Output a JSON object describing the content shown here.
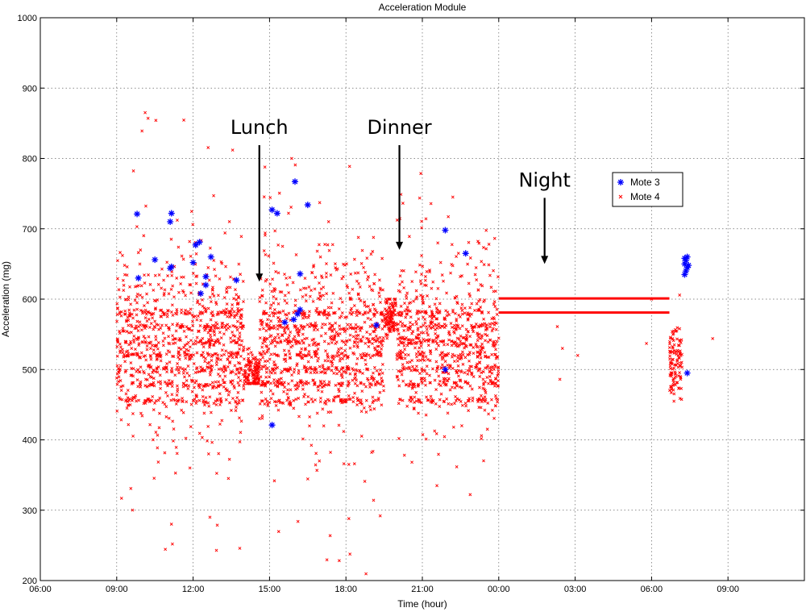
{
  "chart_data": {
    "type": "scatter",
    "title": "Acceleration Module",
    "xlabel": "Time (hour)",
    "ylabel": "Acceleration (mg)",
    "xlim": [
      6,
      36
    ],
    "ylim": [
      200,
      1000
    ],
    "x_ticks": [
      6,
      9,
      12,
      15,
      18,
      21,
      24,
      27,
      30,
      33
    ],
    "x_tick_labels": [
      "06:00",
      "09:00",
      "12:00",
      "15:00",
      "18:00",
      "21:00",
      "00:00",
      "03:00",
      "06:00",
      "09:00"
    ],
    "y_ticks": [
      200,
      300,
      400,
      500,
      600,
      700,
      800,
      900,
      1000
    ],
    "y_tick_labels": [
      "200",
      "300",
      "400",
      "500",
      "600",
      "700",
      "800",
      "900",
      "1000"
    ],
    "grid": true,
    "legend_position": "top-right",
    "annotations": [
      {
        "text": "Lunch",
        "x": 14.6,
        "y": 835,
        "arrow_to": [
          14.6,
          625
        ]
      },
      {
        "text": "Dinner",
        "x": 20.1,
        "y": 835,
        "arrow_to": [
          20.1,
          670
        ]
      },
      {
        "text": "Night",
        "x": 25.8,
        "y": 760,
        "arrow_to": [
          25.8,
          650
        ]
      }
    ],
    "series": [
      {
        "name": "Mote 3",
        "marker": "asterisk",
        "color": "#0000ff",
        "points": [
          [
            9.8,
            721
          ],
          [
            9.85,
            630
          ],
          [
            10.5,
            656
          ],
          [
            11.1,
            710
          ],
          [
            11.15,
            722
          ],
          [
            11.1,
            644
          ],
          [
            11.15,
            646
          ],
          [
            12.0,
            652
          ],
          [
            12.1,
            677
          ],
          [
            12.25,
            681
          ],
          [
            12.3,
            608
          ],
          [
            12.5,
            620
          ],
          [
            12.5,
            632
          ],
          [
            12.7,
            660
          ],
          [
            13.7,
            627
          ],
          [
            15.1,
            727
          ],
          [
            15.3,
            722
          ],
          [
            15.1,
            421
          ],
          [
            16.0,
            767
          ],
          [
            16.2,
            636
          ],
          [
            16.1,
            579
          ],
          [
            16.2,
            585
          ],
          [
            15.6,
            567
          ],
          [
            15.95,
            571
          ],
          [
            16.5,
            734
          ],
          [
            19.2,
            563
          ],
          [
            21.9,
            698
          ],
          [
            22.7,
            665
          ],
          [
            21.9,
            500
          ],
          [
            31.3,
            635
          ],
          [
            31.35,
            640
          ],
          [
            31.4,
            645
          ],
          [
            31.3,
            650
          ],
          [
            31.35,
            655
          ],
          [
            31.4,
            660
          ],
          [
            31.3,
            658
          ],
          [
            31.45,
            648
          ],
          [
            31.4,
            495
          ]
        ]
      },
      {
        "name": "Mote 4",
        "marker": "x",
        "color": "#ff0000",
        "segments": [
          {
            "x_start": 24.0,
            "x_end": 30.7,
            "y": 601
          },
          {
            "x_start": 24.0,
            "x_end": 30.7,
            "y": 581
          }
        ],
        "clusters": [
          {
            "x_range": [
              9.0,
              14.0
            ],
            "y_center": 545,
            "y_spread": 90,
            "y_min": 240,
            "y_max": 945,
            "density": "high"
          },
          {
            "x_range": [
              14.0,
              14.6
            ],
            "y_center": 495,
            "y_spread": 20,
            "y_min": 480,
            "y_max": 530,
            "density": "high"
          },
          {
            "x_range": [
              14.6,
              19.5
            ],
            "y_center": 545,
            "y_spread": 90,
            "y_min": 200,
            "y_max": 800,
            "density": "high"
          },
          {
            "x_range": [
              19.5,
              20.0
            ],
            "y_center": 575,
            "y_spread": 20,
            "y_min": 540,
            "y_max": 600,
            "density": "high"
          },
          {
            "x_range": [
              20.0,
              24.0
            ],
            "y_center": 545,
            "y_spread": 80,
            "y_min": 300,
            "y_max": 810,
            "density": "high"
          },
          {
            "x_range": [
              30.7,
              31.2
            ],
            "y_center": 510,
            "y_spread": 35,
            "y_min": 390,
            "y_max": 620,
            "density": "medium"
          }
        ],
        "bands": [
          455,
          480,
          500,
          520,
          540,
          560,
          580
        ],
        "outliers": [
          [
            26.3,
            561
          ],
          [
            26.5,
            530
          ],
          [
            27.1,
            520
          ],
          [
            29.8,
            537
          ],
          [
            32.4,
            544
          ],
          [
            26.4,
            486
          ],
          [
            30.0,
            600
          ]
        ]
      }
    ]
  }
}
